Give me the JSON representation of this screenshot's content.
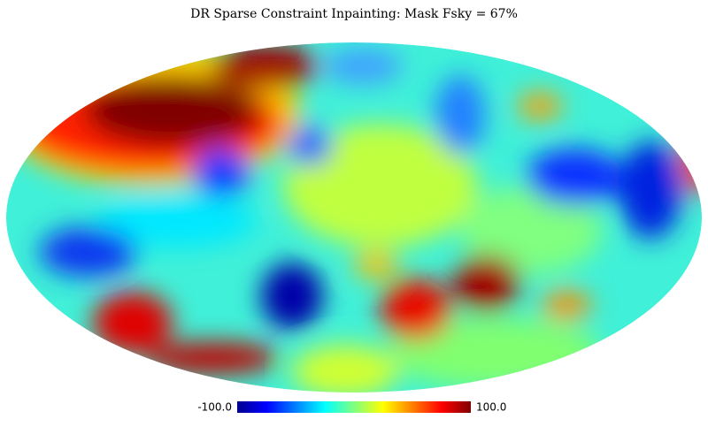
{
  "chart_data": {
    "type": "mollweide",
    "title": "DR Sparse Constraint Inpainting: Mask Fsky = 67%",
    "colormap": "jet",
    "clim": [
      -100,
      100
    ],
    "cticks": [
      {
        "value": -100,
        "label": "-100.0"
      },
      {
        "value": 100,
        "label": "100.0"
      }
    ]
  }
}
